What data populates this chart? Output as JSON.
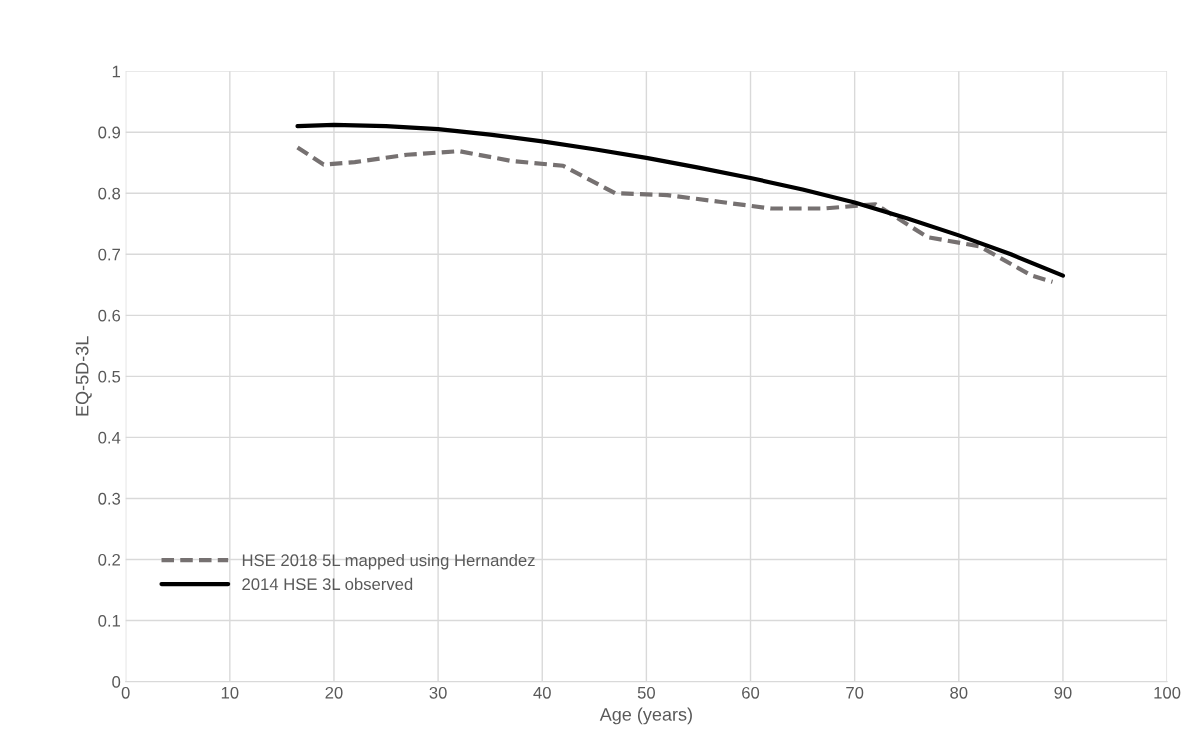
{
  "chart_data": {
    "type": "line",
    "xlabel": "Age (years)",
    "ylabel": "EQ-5D-3L",
    "xlim": [
      0,
      100
    ],
    "xticks": [
      0,
      10,
      20,
      30,
      40,
      50,
      60,
      70,
      80,
      90,
      100
    ],
    "ylim": [
      0,
      1
    ],
    "yticks": [
      0,
      0.1,
      0.2,
      0.3,
      0.4,
      0.5,
      0.6,
      0.7,
      0.8,
      0.9,
      1
    ],
    "grid": true,
    "legend": "left",
    "marker": "none",
    "series": [
      {
        "name": "HSE 2018 5L mapped using Hernandez",
        "color": "#767171",
        "line_style": "dashed",
        "x": [
          16.5,
          19,
          22,
          27,
          32,
          37,
          42,
          47,
          52,
          57,
          62,
          67,
          72,
          77,
          82,
          87,
          89
        ],
        "values": [
          0.875,
          0.847,
          0.851,
          0.863,
          0.869,
          0.853,
          0.845,
          0.8,
          0.797,
          0.786,
          0.775,
          0.775,
          0.782,
          0.728,
          0.713,
          0.665,
          0.655
        ]
      },
      {
        "name": "2014 HSE 3L observed",
        "color": "#000000",
        "line_style": "solid",
        "x": [
          16.5,
          20,
          25,
          30,
          35,
          40,
          45,
          50,
          55,
          60,
          65,
          70,
          75,
          80,
          85,
          90
        ],
        "values": [
          0.91,
          0.912,
          0.91,
          0.905,
          0.896,
          0.885,
          0.872,
          0.858,
          0.842,
          0.825,
          0.806,
          0.785,
          0.759,
          0.731,
          0.7,
          0.665
        ]
      }
    ]
  }
}
